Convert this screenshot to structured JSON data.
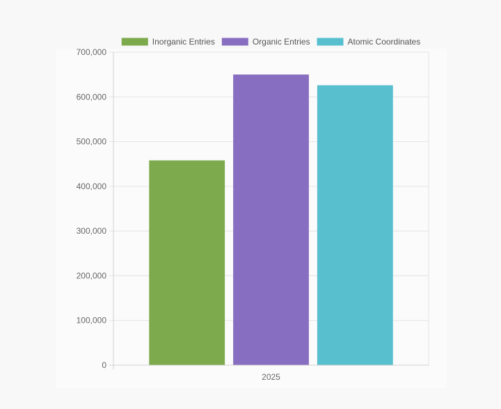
{
  "chart_data": {
    "type": "bar",
    "categories": [
      "2025"
    ],
    "series": [
      {
        "name": "Inorganic Entries",
        "values": [
          458000
        ],
        "color": "#7daa4d"
      },
      {
        "name": "Organic Entries",
        "values": [
          650000
        ],
        "color": "#886ec0"
      },
      {
        "name": "Atomic Coordinates",
        "values": [
          626000
        ],
        "color": "#58bfcf"
      }
    ],
    "yticks": [
      "0",
      "100,000",
      "200,000",
      "300,000",
      "400,000",
      "500,000",
      "600,000",
      "700,000"
    ],
    "ylim": [
      0,
      700000
    ],
    "grid": true,
    "legend": "top-center"
  }
}
